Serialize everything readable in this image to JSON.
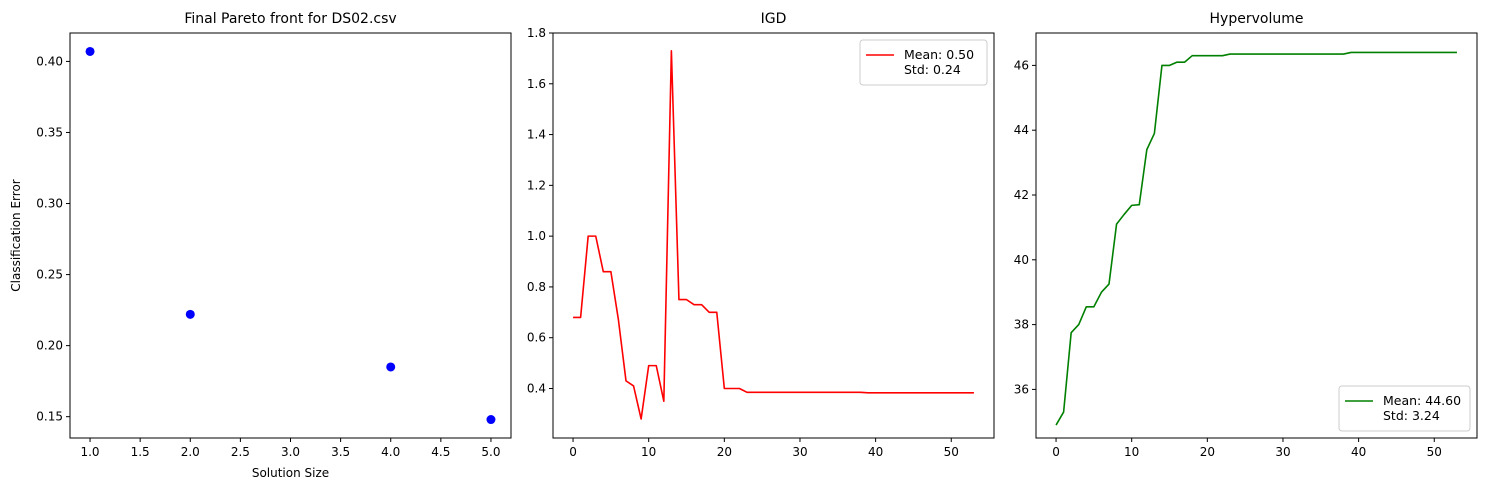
{
  "chart_data": [
    {
      "type": "scatter",
      "title": "Final Pareto front for DS02.csv",
      "xlabel": "Solution Size",
      "ylabel": "Classification Error",
      "xlim": [
        0.8,
        5.2
      ],
      "ylim": [
        0.135,
        0.42
      ],
      "xticks": [
        1.0,
        1.5,
        2.0,
        2.5,
        3.0,
        3.5,
        4.0,
        4.5,
        5.0
      ],
      "xtick_labels": [
        "1.0",
        "1.5",
        "2.0",
        "2.5",
        "3.0",
        "3.5",
        "4.0",
        "4.5",
        "5.0"
      ],
      "yticks": [
        0.15,
        0.2,
        0.25,
        0.3,
        0.35,
        0.4
      ],
      "ytick_labels": [
        "0.15",
        "0.20",
        "0.25",
        "0.30",
        "0.35",
        "0.40"
      ],
      "color": "#0000ff",
      "grid": false,
      "points": [
        {
          "x": 1,
          "y": 0.407
        },
        {
          "x": 2,
          "y": 0.222
        },
        {
          "x": 4,
          "y": 0.185
        },
        {
          "x": 5,
          "y": 0.148
        }
      ]
    },
    {
      "type": "line",
      "title": "IGD",
      "xlabel": "",
      "ylabel": "",
      "xlim": [
        -2.65,
        55.65
      ],
      "ylim": [
        0.205,
        1.8
      ],
      "xticks": [
        0,
        10,
        20,
        30,
        40,
        50
      ],
      "xtick_labels": [
        "0",
        "10",
        "20",
        "30",
        "40",
        "50"
      ],
      "yticks": [
        0.4,
        0.6,
        0.8,
        1.0,
        1.2,
        1.4,
        1.6,
        1.8
      ],
      "ytick_labels": [
        "0.4",
        "0.6",
        "0.8",
        "1.0",
        "1.2",
        "1.4",
        "1.6",
        "1.8"
      ],
      "color": "#ff0000",
      "grid": false,
      "legend_position": "upper right",
      "legend_lines": [
        "Mean: 0.50",
        "Std: 0.24"
      ],
      "series": [
        {
          "values": [
            0.68,
            0.68,
            1.0,
            1.0,
            0.86,
            0.86,
            0.67,
            0.43,
            0.41,
            0.28,
            0.49,
            0.49,
            0.35,
            1.73,
            0.75,
            0.75,
            0.73,
            0.73,
            0.7,
            0.7,
            0.4,
            0.4,
            0.4,
            0.385,
            0.385,
            0.385,
            0.385,
            0.385,
            0.385,
            0.385,
            0.385,
            0.385,
            0.385,
            0.385,
            0.385,
            0.385,
            0.385,
            0.385,
            0.385,
            0.383,
            0.383,
            0.383,
            0.383,
            0.383,
            0.383,
            0.383,
            0.383,
            0.383,
            0.383,
            0.383,
            0.383,
            0.383,
            0.383,
            0.383
          ]
        }
      ]
    },
    {
      "type": "line",
      "title": "Hypervolume",
      "xlabel": "",
      "ylabel": "",
      "xlim": [
        -2.65,
        55.65
      ],
      "ylim": [
        34.5,
        47.0
      ],
      "xticks": [
        0,
        10,
        20,
        30,
        40,
        50
      ],
      "xtick_labels": [
        "0",
        "10",
        "20",
        "30",
        "40",
        "50"
      ],
      "yticks": [
        36,
        38,
        40,
        42,
        44,
        46
      ],
      "ytick_labels": [
        "36",
        "38",
        "40",
        "42",
        "44",
        "46"
      ],
      "color": "#008000",
      "grid": false,
      "legend_position": "lower right",
      "legend_lines": [
        "Mean: 44.60",
        "Std: 3.24"
      ],
      "series": [
        {
          "values": [
            34.9,
            35.3,
            37.75,
            38.0,
            38.55,
            38.55,
            39.0,
            39.25,
            41.1,
            41.4,
            41.68,
            41.7,
            43.4,
            43.9,
            46.0,
            46.0,
            46.1,
            46.1,
            46.3,
            46.3,
            46.3,
            46.3,
            46.3,
            46.35,
            46.35,
            46.35,
            46.35,
            46.35,
            46.35,
            46.35,
            46.35,
            46.35,
            46.35,
            46.35,
            46.35,
            46.35,
            46.35,
            46.35,
            46.35,
            46.4,
            46.4,
            46.4,
            46.4,
            46.4,
            46.4,
            46.4,
            46.4,
            46.4,
            46.4,
            46.4,
            46.4,
            46.4,
            46.4,
            46.4
          ]
        }
      ]
    }
  ]
}
